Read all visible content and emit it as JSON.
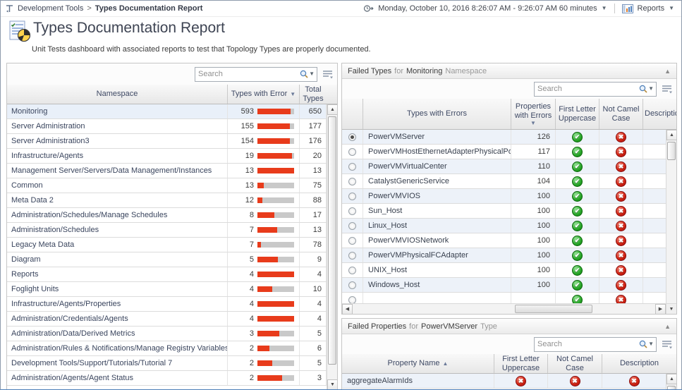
{
  "header": {
    "breadcrumb": [
      "Development Tools",
      "Types Documentation Report"
    ],
    "breadcrumb_separator": ">",
    "time_range": "Monday, October 10, 2016 8:26:07 AM - 9:26:07 AM 60 minutes",
    "reports_label": "Reports"
  },
  "page": {
    "title": "Types Documentation Report",
    "subtitle": "Unit Tests dashboard with associated reports to test that Topology Types are properly documented."
  },
  "search": {
    "placeholder": "Search"
  },
  "status_colors": {
    "pass": "#2aa82a",
    "fail": "#d32413",
    "bar_fill": "#e83b1b",
    "bar_track": "#c9c9c9"
  },
  "namespace_table": {
    "columns": {
      "namespace": "Namespace",
      "types_with_error": "Types with Error",
      "total_types": "Total Types"
    },
    "sort": {
      "column": "types_with_error",
      "direction": "desc"
    },
    "rows": [
      {
        "namespace": "Monitoring",
        "errors": 593,
        "total": 650,
        "selected": true
      },
      {
        "namespace": "Server Administration",
        "errors": 155,
        "total": 177
      },
      {
        "namespace": "Server Administration3",
        "errors": 154,
        "total": 176
      },
      {
        "namespace": "Infrastructure/Agents",
        "errors": 19,
        "total": 20
      },
      {
        "namespace": "Management Server/Servers/Data Management/Instances",
        "errors": 13,
        "total": 13
      },
      {
        "namespace": "Common",
        "errors": 13,
        "total": 75
      },
      {
        "namespace": "Meta Data 2",
        "errors": 12,
        "total": 88
      },
      {
        "namespace": "Administration/Schedules/Manage Schedules",
        "errors": 8,
        "total": 17
      },
      {
        "namespace": "Administration/Schedules",
        "errors": 7,
        "total": 13
      },
      {
        "namespace": "Legacy Meta Data",
        "errors": 7,
        "total": 78
      },
      {
        "namespace": "Diagram",
        "errors": 5,
        "total": 9
      },
      {
        "namespace": "Reports",
        "errors": 4,
        "total": 4
      },
      {
        "namespace": "Foglight Units",
        "errors": 4,
        "total": 10
      },
      {
        "namespace": "Infrastructure/Agents/Properties",
        "errors": 4,
        "total": 4
      },
      {
        "namespace": "Administration/Credentials/Agents",
        "errors": 4,
        "total": 4
      },
      {
        "namespace": "Administration/Data/Derived Metrics",
        "errors": 3,
        "total": 5
      },
      {
        "namespace": "Administration/Rules & Notifications/Manage Registry Variables",
        "errors": 2,
        "total": 6
      },
      {
        "namespace": "Development Tools/Support/Tutorials/Tutorial 7",
        "errors": 2,
        "total": 5
      },
      {
        "namespace": "Administration/Agents/Agent Status",
        "errors": 2,
        "total": 3
      }
    ]
  },
  "failed_types_panel": {
    "title": {
      "prefix": "Failed Types",
      "for": "for",
      "name": "Monitoring",
      "suffix": "Namespace"
    },
    "columns": {
      "types_with_errors": "Types with Errors",
      "properties_with_errors": "Properties with Errors",
      "first_letter_uppercase": "First Letter Uppercase",
      "not_camel_case": "Not Camel Case",
      "description": "Description"
    },
    "sort": {
      "column": "properties_with_errors",
      "direction": "desc"
    },
    "rows": [
      {
        "type": "PowerVMServer",
        "properties_with_errors": 126,
        "first_letter_uppercase": "pass",
        "not_camel_case": "fail",
        "selected": true
      },
      {
        "type": "PowerVMHostEthernetAdapterPhysicalPort",
        "properties_with_errors": 117,
        "first_letter_uppercase": "pass",
        "not_camel_case": "fail"
      },
      {
        "type": "PowerVMVirtualCenter",
        "properties_with_errors": 110,
        "first_letter_uppercase": "pass",
        "not_camel_case": "fail"
      },
      {
        "type": "CatalystGenericService",
        "properties_with_errors": 104,
        "first_letter_uppercase": "pass",
        "not_camel_case": "fail"
      },
      {
        "type": "PowerVMVIOS",
        "properties_with_errors": 100,
        "first_letter_uppercase": "pass",
        "not_camel_case": "fail"
      },
      {
        "type": "Sun_Host",
        "properties_with_errors": 100,
        "first_letter_uppercase": "pass",
        "not_camel_case": "fail"
      },
      {
        "type": "Linux_Host",
        "properties_with_errors": 100,
        "first_letter_uppercase": "pass",
        "not_camel_case": "fail"
      },
      {
        "type": "PowerVMVIOSNetwork",
        "properties_with_errors": 100,
        "first_letter_uppercase": "pass",
        "not_camel_case": "fail"
      },
      {
        "type": "PowerVMPhysicalFCAdapter",
        "properties_with_errors": 100,
        "first_letter_uppercase": "pass",
        "not_camel_case": "fail"
      },
      {
        "type": "UNIX_Host",
        "properties_with_errors": 100,
        "first_letter_uppercase": "pass",
        "not_camel_case": "fail"
      },
      {
        "type": "Windows_Host",
        "properties_with_errors": 100,
        "first_letter_uppercase": "pass",
        "not_camel_case": "fail"
      }
    ],
    "partial_row": {
      "type": "",
      "properties_with_errors": "",
      "first_letter_uppercase": "pass",
      "not_camel_case": "fail"
    }
  },
  "failed_properties_panel": {
    "title": {
      "prefix": "Failed Properties",
      "for": "for",
      "name": "PowerVMServer",
      "suffix": "Type"
    },
    "columns": {
      "property_name": "Property Name",
      "first_letter_uppercase": "First Letter Uppercase",
      "not_camel_case": "Not Camel Case",
      "description": "Description"
    },
    "sort": {
      "column": "property_name",
      "direction": "asc"
    },
    "rows": [
      {
        "property": "aggregateAlarmIds",
        "first_letter_uppercase": "fail",
        "not_camel_case": "fail",
        "description": "fail"
      }
    ]
  }
}
